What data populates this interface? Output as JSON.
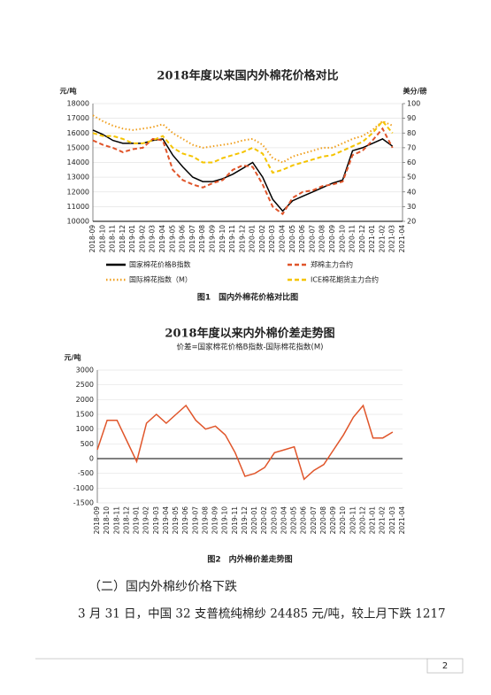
{
  "chart_data": [
    {
      "type": "line",
      "title": "2018年度以来国内外棉花价格对比",
      "caption": "图1　国内外棉花价格对比图",
      "ylabel": "元/吨",
      "y2label": "美分/磅",
      "categories": [
        "2018-09",
        "2018-10",
        "2018-11",
        "2018-12",
        "2019-01",
        "2019-02",
        "2019-03",
        "2019-04",
        "2019-05",
        "2019-06",
        "2019-07",
        "2019-08",
        "2019-09",
        "2019-10",
        "2019-11",
        "2019-12",
        "2020-01",
        "2020-02",
        "2020-03",
        "2020-04",
        "2020-05",
        "2020-06",
        "2020-07",
        "2020-08",
        "2020-09",
        "2020-10",
        "2020-11",
        "2020-12",
        "2021-01",
        "2021-02",
        "2021-03",
        "2021-04"
      ],
      "ylim": [
        10000,
        18000
      ],
      "yticks": [
        10000,
        11000,
        12000,
        13000,
        14000,
        15000,
        16000,
        17000,
        18000
      ],
      "y2lim": [
        20,
        100
      ],
      "y2ticks": [
        20,
        30,
        40,
        50,
        60,
        70,
        80,
        90,
        100
      ],
      "series": [
        {
          "name": "国家棉花价格B指数",
          "color": "#000000",
          "style": "solid",
          "values": [
            16200,
            15900,
            15500,
            15300,
            15300,
            15300,
            15500,
            15600,
            14500,
            13700,
            13000,
            12700,
            12700,
            12900,
            13200,
            13600,
            14000,
            13000,
            11500,
            10700,
            11400,
            11700,
            12000,
            12300,
            12600,
            12800,
            14800,
            15000,
            15300,
            15600,
            15100,
            null
          ]
        },
        {
          "name": "郑棉主力合约",
          "color": "#e0552a",
          "style": "dashed",
          "values": [
            15500,
            15200,
            15000,
            14700,
            14900,
            15000,
            15600,
            15500,
            13500,
            12800,
            12500,
            12300,
            12600,
            12800,
            13500,
            13800,
            13700,
            12500,
            11000,
            10500,
            11600,
            12000,
            12100,
            12400,
            12500,
            12700,
            14500,
            14800,
            15500,
            16300,
            15000,
            null
          ]
        },
        {
          "name": "国际棉花指数（M）",
          "color": "#f0a020",
          "style": "dotted",
          "axis": "y2",
          "values": [
            92,
            88,
            85,
            83,
            82,
            83,
            84,
            86,
            80,
            76,
            72,
            70,
            71,
            72,
            73,
            75,
            76,
            72,
            63,
            60,
            64,
            66,
            68,
            70,
            70,
            73,
            76,
            78,
            82,
            88,
            85,
            null
          ]
        },
        {
          "name": "ICE棉花期货主力合约",
          "color": "#f5c400",
          "style": "dashed",
          "axis": "y2",
          "values": [
            80,
            78,
            78,
            76,
            73,
            73,
            75,
            78,
            70,
            66,
            64,
            60,
            60,
            63,
            65,
            67,
            70,
            66,
            53,
            55,
            58,
            60,
            62,
            64,
            65,
            68,
            71,
            74,
            80,
            88,
            80,
            null
          ]
        }
      ]
    },
    {
      "type": "line",
      "title": "2018年度以来内外棉价差走势图",
      "subtitle": "价差=国家棉花价格B指数-国际棉花指数(M)",
      "caption": "图2　内外棉价差走势图",
      "ylabel": "元/吨",
      "categories": [
        "2018-09",
        "2018-10",
        "2018-11",
        "2018-12",
        "2019-01",
        "2019-02",
        "2019-03",
        "2019-04",
        "2019-05",
        "2019-06",
        "2019-07",
        "2019-08",
        "2019-09",
        "2019-10",
        "2019-11",
        "2019-12",
        "2020-01",
        "2020-02",
        "2020-03",
        "2020-04",
        "2020-05",
        "2020-06",
        "2020-07",
        "2020-08",
        "2020-09",
        "2020-10",
        "2020-11",
        "2020-12",
        "2021-01",
        "2021-02",
        "2021-03",
        "2021-04"
      ],
      "ylim": [
        -1500,
        3000
      ],
      "yticks": [
        -1500,
        -1000,
        -500,
        0,
        500,
        1000,
        1500,
        2000,
        2500,
        3000
      ],
      "series": [
        {
          "color": "#e0552a",
          "style": "solid",
          "values": [
            300,
            1300,
            1300,
            600,
            -100,
            1200,
            1500,
            1200,
            1500,
            1800,
            1300,
            1000,
            1100,
            800,
            200,
            -600,
            -500,
            -300,
            200,
            300,
            400,
            -700,
            -400,
            -200,
            300,
            800,
            1400,
            1800,
            700,
            700,
            900,
            null
          ]
        }
      ]
    }
  ],
  "heading": "（二）国内外棉纱价格下跌",
  "paragraph": "3 月 31 日，中国 32 支普梳纯棉纱 24485 元/吨，较上月下跌 1217",
  "page_number": "2"
}
